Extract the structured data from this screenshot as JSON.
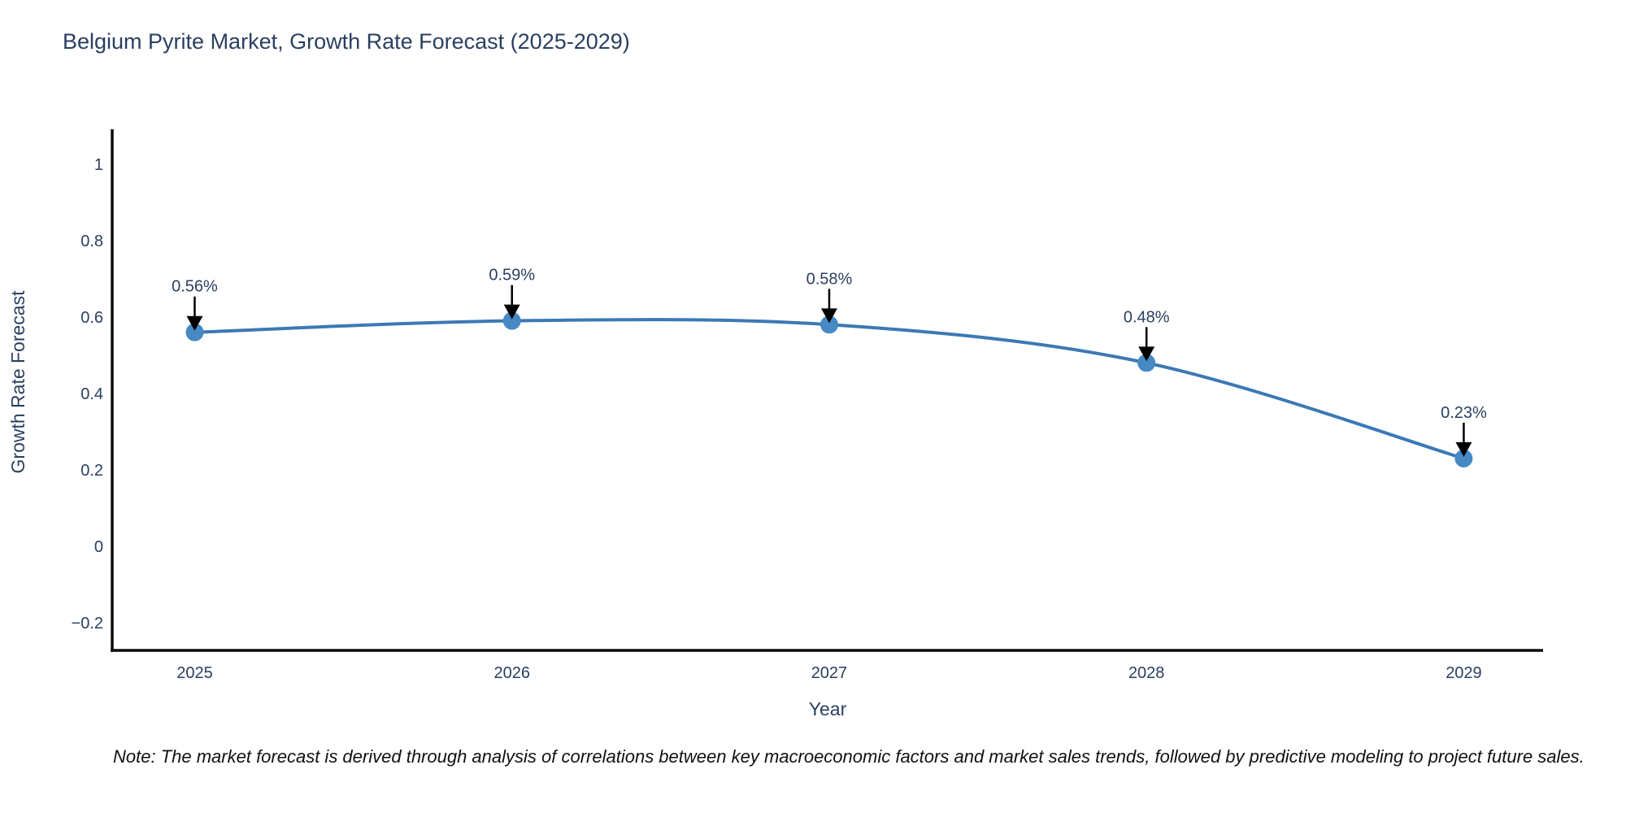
{
  "title": "Belgium Pyrite Market, Growth Rate Forecast (2025-2029)",
  "note": "Note: The market forecast is derived through analysis of correlations between key macroeconomic factors and market sales trends, followed by predictive modeling to project future sales.",
  "chart_data": {
    "type": "line",
    "title": "Belgium Pyrite Market, Growth Rate Forecast (2025-2029)",
    "xlabel": "Year",
    "ylabel": "Growth Rate Forecast",
    "x": [
      2025,
      2026,
      2027,
      2028,
      2029
    ],
    "series": [
      {
        "name": "Growth Rate Forecast",
        "values": [
          0.56,
          0.59,
          0.58,
          0.48,
          0.23
        ]
      }
    ],
    "point_labels": [
      "0.56%",
      "0.59%",
      "0.58%",
      "0.48%",
      "0.23%"
    ],
    "xtick_labels": [
      "2025",
      "2026",
      "2027",
      "2028",
      "2029"
    ],
    "ytick_values": [
      1,
      0.8,
      0.6,
      0.4,
      0.2,
      0,
      -0.2
    ],
    "ytick_labels": [
      "1",
      "0.8",
      "0.6",
      "0.4",
      "0.2",
      "0",
      "−0.2"
    ],
    "xlim": [
      2024.74,
      2029.25
    ],
    "ylim": [
      -0.272,
      1.091
    ],
    "grid": false,
    "legend": "none",
    "line_shape": "spline",
    "colors": {
      "line": "#3c79b5",
      "marker": "#4689c4",
      "axis": "#0b0b0b",
      "text": "#2a3f5f",
      "annotation_arrow": "#000000"
    }
  }
}
